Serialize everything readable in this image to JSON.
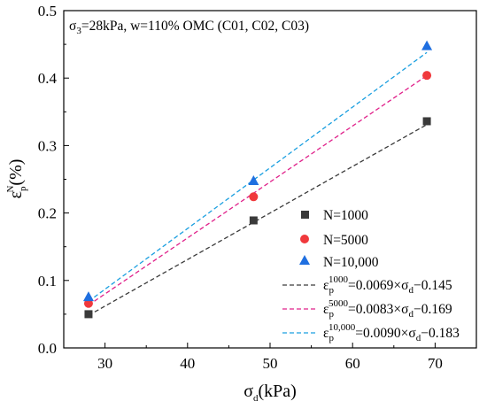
{
  "chart_data": {
    "type": "scatter",
    "annotation": {
      "sigma": "σ",
      "sub": "3",
      "rest": "=28kPa, w=110% OMC (C01, C02, C03)"
    },
    "xlabel": {
      "base": "σ",
      "sub": "d",
      "rest": "(kPa)"
    },
    "ylabel": {
      "base": "ε",
      "sub": "p",
      "sup": "N",
      "rest": "(%)"
    },
    "xlim": [
      25,
      75
    ],
    "ylim": [
      0,
      0.5
    ],
    "xticks": [
      30,
      40,
      50,
      60,
      70
    ],
    "yticks": [
      0.0,
      0.1,
      0.2,
      0.3,
      0.4,
      0.5
    ],
    "xtick_labels": [
      "30",
      "40",
      "50",
      "60",
      "70"
    ],
    "ytick_labels": [
      "0.0",
      "0.1",
      "0.2",
      "0.3",
      "0.4",
      "0.5"
    ],
    "grid": false,
    "legend_position": "bottom-right",
    "series": [
      {
        "name": "N=1000",
        "marker": "square",
        "color": "#3a3a3a",
        "x": [
          28,
          48,
          69
        ],
        "y": [
          0.05,
          0.189,
          0.336
        ]
      },
      {
        "name": "N=5000",
        "marker": "circle",
        "color": "#f0393c",
        "x": [
          28,
          48,
          69
        ],
        "y": [
          0.066,
          0.224,
          0.404
        ]
      },
      {
        "name": "N=10,000",
        "marker": "triangle",
        "color": "#1f6fe0",
        "x": [
          28,
          48,
          69
        ],
        "y": [
          0.076,
          0.248,
          0.448
        ]
      }
    ],
    "fits": [
      {
        "name": {
          "base": "ε",
          "sub": "p",
          "sup": "1000",
          "mid": "=0.0069×σ",
          "sub2": "d",
          "tail": "−0.145"
        },
        "color": "#3a3a3a",
        "slope": 0.0069,
        "intercept": -0.145,
        "x_range": [
          28,
          69
        ]
      },
      {
        "name": {
          "base": "ε",
          "sub": "p",
          "sup": "5000",
          "mid": "=0.0083×σ",
          "sub2": "d",
          "tail": "−0.169"
        },
        "color": "#e0208a",
        "slope": 0.0083,
        "intercept": -0.169,
        "x_range": [
          28,
          69
        ]
      },
      {
        "name": {
          "base": "ε",
          "sub": "p",
          "sup": "10,000",
          "mid": "=0.0090×σ",
          "sub2": "d",
          "tail": "−0.183"
        },
        "color": "#1a9fe0",
        "slope": 0.009,
        "intercept": -0.183,
        "x_range": [
          28,
          69
        ]
      }
    ]
  }
}
